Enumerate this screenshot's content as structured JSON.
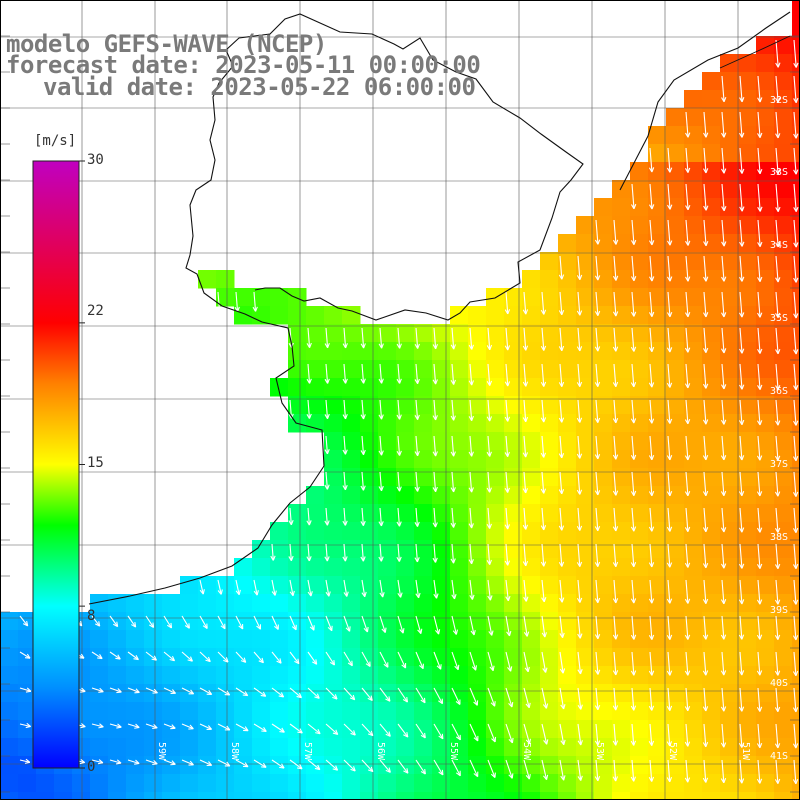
{
  "title": {
    "line1": "modelo GEFS-WAVE (NCEP)",
    "line2": "forecast date: 2023-05-11 00:00:00",
    "line3": "valid date: 2023-05-22 06:00:00"
  },
  "colorbar": {
    "unit": "[m/s]",
    "ticks": [
      {
        "label": "30",
        "value": 30
      },
      {
        "label": "22",
        "value": 22
      },
      {
        "label": "15",
        "value": 15
      },
      {
        "label": "8",
        "value": 8
      },
      {
        "label": "0",
        "value": 0
      }
    ],
    "colors": [
      "#0000ff",
      "#0090ff",
      "#00ffff",
      "#00ff00",
      "#ffff00",
      "#ff8000",
      "#ff0000",
      "#c000c0"
    ]
  },
  "map": {
    "lat_labels": [
      "32S",
      "33S",
      "34S",
      "35S",
      "36S",
      "37S",
      "38S",
      "39S",
      "40S",
      "41S"
    ],
    "lon_labels": [
      "59W",
      "58W",
      "57W",
      "56W",
      "55W",
      "54W",
      "53W",
      "52W",
      "51W"
    ],
    "field": "wind speed",
    "wind_direction": "mostly southward, turning eastward near the southwest coast"
  }
}
